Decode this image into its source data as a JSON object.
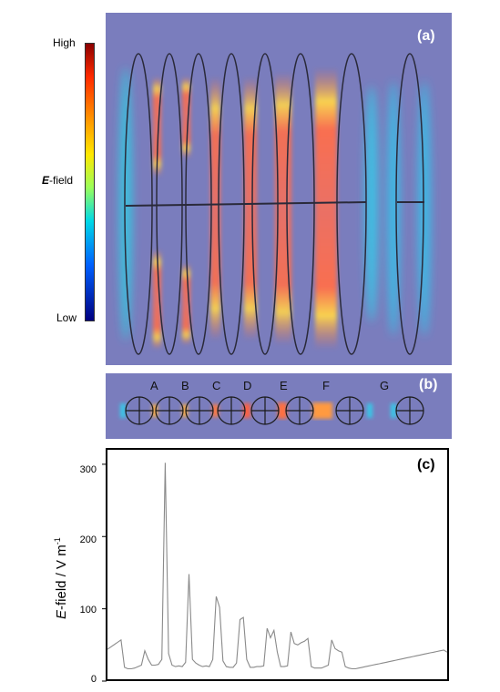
{
  "panel_a": {
    "tag": "(a)",
    "colorbar": {
      "high": "High",
      "low": "Low",
      "title_italic": "E",
      "title_rest": "-field"
    }
  },
  "panel_b": {
    "tag": "(b)",
    "gap_labels": [
      "A",
      "B",
      "C",
      "D",
      "E",
      "F",
      "G"
    ]
  },
  "panel_c": {
    "tag": "(c)",
    "ylabel_italic": "E",
    "ylabel_rest": "-field / V m",
    "ylabel_sup": "-1",
    "yticks": [
      "0",
      "100",
      "200",
      "300"
    ]
  },
  "colors": {
    "background_field": "#7a7dbd",
    "plot_line": "#8a8a8a"
  },
  "chart_data": {
    "type": "line",
    "title": "",
    "xlabel": "",
    "ylabel": "E-field / V m-1",
    "ylim": [
      0,
      320
    ],
    "x": [
      0,
      4,
      5,
      6,
      7,
      8,
      9,
      10,
      11,
      12,
      13,
      14,
      15,
      16,
      17,
      18,
      19,
      20,
      21,
      22,
      23,
      24,
      25,
      26,
      27,
      28,
      29,
      30,
      31,
      32,
      33,
      34,
      35,
      36,
      37,
      38,
      39,
      40,
      41,
      42,
      43,
      44,
      45,
      46,
      47,
      48,
      49,
      50,
      51,
      52,
      53,
      54,
      55,
      56,
      57,
      58,
      59,
      60,
      61,
      62,
      63,
      64,
      65,
      66,
      67,
      68,
      69,
      70,
      71,
      72,
      73,
      74,
      75,
      76,
      77,
      78,
      79,
      80,
      81,
      82,
      83,
      84,
      85,
      86,
      87,
      88,
      89,
      90,
      91,
      92,
      93,
      94,
      95,
      96,
      97,
      98,
      99,
      100
    ],
    "values": [
      44,
      57,
      19,
      17,
      17,
      18,
      20,
      22,
      42,
      30,
      22,
      22,
      23,
      30,
      302,
      38,
      22,
      20,
      21,
      20,
      26,
      148,
      30,
      25,
      22,
      20,
      21,
      20,
      30,
      117,
      102,
      28,
      20,
      19,
      19,
      25,
      85,
      88,
      30,
      19,
      19,
      20,
      20,
      21,
      73,
      60,
      70,
      40,
      20,
      20,
      21,
      68,
      52,
      50,
      53,
      55,
      59,
      20,
      18,
      18,
      18,
      20,
      22,
      57,
      45,
      42,
      40,
      20,
      18,
      17,
      17,
      18,
      19,
      20,
      21,
      22,
      23,
      24,
      25,
      26,
      27,
      28,
      29,
      30,
      31,
      32,
      33,
      34,
      35,
      36,
      37,
      38,
      39,
      40,
      41,
      42,
      43,
      40
    ]
  }
}
